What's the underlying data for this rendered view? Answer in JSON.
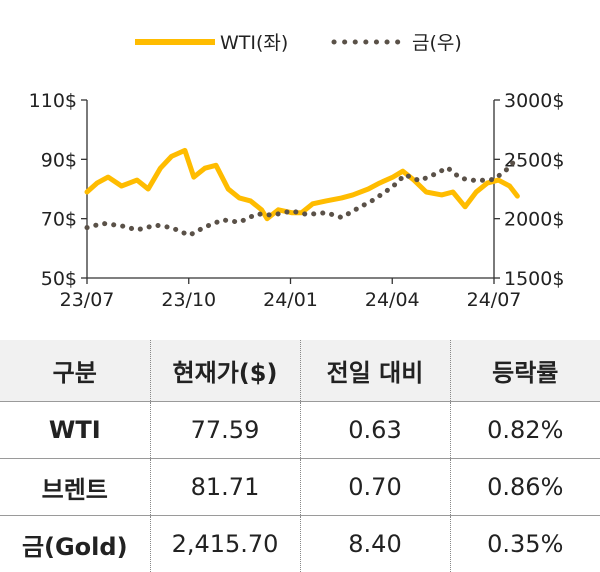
{
  "chart_data": {
    "type": "line",
    "legend_position": "top-center",
    "grid": false,
    "x_ticks": [
      "23/07",
      "23/10",
      "24/01",
      "24/04",
      "24/07"
    ],
    "x_range": [
      "2023-07",
      "2024-07"
    ],
    "y_left": {
      "range": [
        50,
        110
      ],
      "ticks": [
        "110$",
        "90$",
        "70$",
        "50$"
      ]
    },
    "y_right": {
      "range": [
        1500,
        3000
      ],
      "ticks": [
        "3000$",
        "2500$",
        "2000$",
        "1500$"
      ]
    },
    "series": [
      {
        "name": "WTI(좌)",
        "axis": "left",
        "style": "solid",
        "color": "#FFBC00",
        "points": [
          [
            "2023-07-01",
            79
          ],
          [
            "2023-07-10",
            82
          ],
          [
            "2023-07-20",
            84
          ],
          [
            "2023-08-01",
            81
          ],
          [
            "2023-08-15",
            83
          ],
          [
            "2023-08-25",
            80
          ],
          [
            "2023-09-05",
            87
          ],
          [
            "2023-09-15",
            91
          ],
          [
            "2023-09-27",
            93
          ],
          [
            "2023-10-05",
            84
          ],
          [
            "2023-10-15",
            87
          ],
          [
            "2023-10-25",
            88
          ],
          [
            "2023-11-05",
            80
          ],
          [
            "2023-11-15",
            77
          ],
          [
            "2023-11-25",
            76
          ],
          [
            "2023-12-05",
            73
          ],
          [
            "2023-12-10",
            70
          ],
          [
            "2023-12-20",
            73
          ],
          [
            "2024-01-01",
            72
          ],
          [
            "2024-01-10",
            72
          ],
          [
            "2024-01-20",
            75
          ],
          [
            "2024-02-01",
            76
          ],
          [
            "2024-02-15",
            77
          ],
          [
            "2024-02-25",
            78
          ],
          [
            "2024-03-10",
            80
          ],
          [
            "2024-03-20",
            82
          ],
          [
            "2024-04-01",
            84
          ],
          [
            "2024-04-10",
            86
          ],
          [
            "2024-04-20",
            83
          ],
          [
            "2024-05-01",
            79
          ],
          [
            "2024-05-15",
            78
          ],
          [
            "2024-05-25",
            79
          ],
          [
            "2024-06-05",
            74
          ],
          [
            "2024-06-15",
            79
          ],
          [
            "2024-06-25",
            82
          ],
          [
            "2024-07-05",
            83
          ],
          [
            "2024-07-15",
            81
          ],
          [
            "2024-07-22",
            77.59
          ]
        ]
      },
      {
        "name": "금(우)",
        "axis": "right",
        "style": "dotted",
        "color": "#5A5148",
        "points": [
          [
            "2023-07-01",
            1925
          ],
          [
            "2023-07-15",
            1960
          ],
          [
            "2023-08-01",
            1940
          ],
          [
            "2023-08-15",
            1905
          ],
          [
            "2023-09-01",
            1945
          ],
          [
            "2023-09-15",
            1925
          ],
          [
            "2023-10-01",
            1860
          ],
          [
            "2023-10-15",
            1930
          ],
          [
            "2023-10-31",
            1990
          ],
          [
            "2023-11-15",
            1970
          ],
          [
            "2023-12-01",
            2040
          ],
          [
            "2023-12-15",
            2030
          ],
          [
            "2024-01-01",
            2065
          ],
          [
            "2024-01-15",
            2035
          ],
          [
            "2024-02-01",
            2050
          ],
          [
            "2024-02-15",
            2010
          ],
          [
            "2024-03-01",
            2090
          ],
          [
            "2024-03-15",
            2160
          ],
          [
            "2024-04-01",
            2270
          ],
          [
            "2024-04-12",
            2370
          ],
          [
            "2024-04-25",
            2320
          ],
          [
            "2024-05-10",
            2380
          ],
          [
            "2024-05-20",
            2430
          ],
          [
            "2024-06-01",
            2340
          ],
          [
            "2024-06-15",
            2320
          ],
          [
            "2024-07-01",
            2330
          ],
          [
            "2024-07-12",
            2410
          ],
          [
            "2024-07-18",
            2470
          ],
          [
            "2024-07-22",
            2415.7
          ]
        ]
      }
    ]
  },
  "table": {
    "headers": [
      "구분",
      "현재가($)",
      "전일 대비",
      "등락률"
    ],
    "rows": [
      [
        "WTI",
        "77.59",
        "0.63",
        "0.82%"
      ],
      [
        "브렌트",
        "81.71",
        "0.70",
        "0.86%"
      ],
      [
        "금(Gold)",
        "2,415.70",
        "8.40",
        "0.35%"
      ]
    ]
  }
}
